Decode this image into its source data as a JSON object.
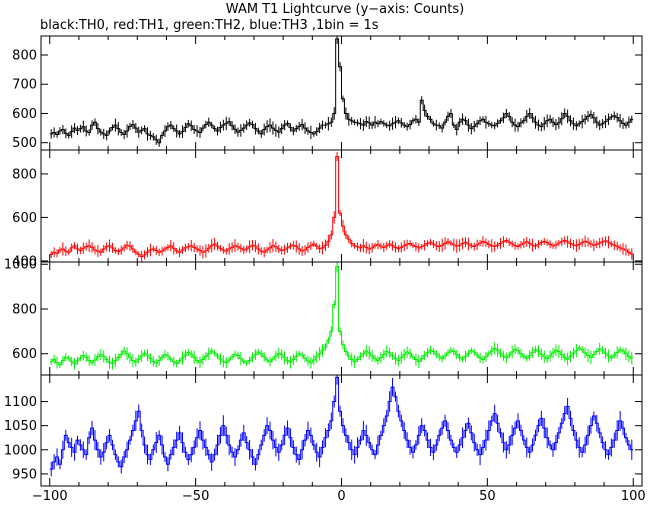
{
  "title": "WAM T1 Lightcurve (y−axis: Counts)",
  "subtitle": "black:TH0, red:TH1, green:TH2, blue:TH3 ,1bin = 1s",
  "chart_data": {
    "type": "line",
    "xlim": [
      -103,
      103
    ],
    "x_ticks": [
      -100,
      -50,
      0,
      50,
      100
    ],
    "x_tick_labels": [
      "−100",
      "−50",
      "0",
      "50",
      "100"
    ],
    "bin_seconds": 1,
    "panels": [
      {
        "name": "TH0",
        "color": "#000000",
        "ylim": [
          475,
          865
        ],
        "y_ticks": [
          500,
          600,
          700,
          800
        ],
        "y_tick_labels": [
          "500",
          "600",
          "700",
          "800"
        ],
        "values": [
          530,
          535,
          528,
          540,
          545,
          532,
          525,
          538,
          550,
          542,
          548,
          555,
          540,
          535,
          560,
          570,
          548,
          536,
          530,
          525,
          540,
          552,
          560,
          548,
          535,
          528,
          540,
          556,
          562,
          550,
          536,
          542,
          548,
          530,
          525,
          520,
          510,
          500,
          525,
          540,
          555,
          560,
          548,
          540,
          530,
          538,
          552,
          565,
          558,
          545,
          540,
          535,
          550,
          562,
          570,
          560,
          548,
          540,
          552,
          560,
          566,
          572,
          558,
          546,
          536,
          542,
          550,
          560,
          568,
          562,
          548,
          540,
          530,
          545,
          555,
          560,
          550,
          542,
          536,
          548,
          560,
          566,
          552,
          540,
          548,
          556,
          562,
          550,
          540,
          535,
          530,
          538,
          550,
          560,
          560,
          565,
          570,
          600,
          855,
          760,
          650,
          600,
          580,
          575,
          570,
          568,
          565,
          560,
          572,
          568,
          560,
          570,
          565,
          572,
          566,
          560,
          558,
          565,
          570,
          575,
          568,
          560,
          555,
          562,
          575,
          580,
          570,
          645,
          610,
          590,
          580,
          565,
          560,
          558,
          550,
          570,
          590,
          600,
          560,
          545,
          570,
          580,
          575,
          560,
          548,
          556,
          565,
          575,
          580,
          570,
          565,
          560,
          558,
          566,
          575,
          585,
          600,
          590,
          570,
          560,
          555,
          568,
          575,
          590,
          600,
          585,
          570,
          560,
          555,
          565,
          575,
          580,
          570,
          562,
          568,
          582,
          600,
          590,
          575,
          565,
          558,
          565,
          572,
          580,
          590,
          596,
          585,
          570,
          560,
          565,
          572,
          580,
          588,
          592,
          586,
          575,
          566,
          560,
          570,
          580
        ]
      },
      {
        "name": "TH1",
        "color": "#ff0000",
        "ylim": [
          395,
          910
        ],
        "y_ticks": [
          400,
          600,
          800
        ],
        "y_tick_labels": [
          "400",
          "600",
          "800"
        ],
        "values": [
          430,
          440,
          435,
          450,
          455,
          445,
          440,
          460,
          470,
          455,
          448,
          458,
          465,
          470,
          462,
          450,
          445,
          440,
          455,
          465,
          470,
          460,
          448,
          442,
          450,
          460,
          472,
          468,
          455,
          440,
          430,
          420,
          428,
          440,
          450,
          455,
          448,
          440,
          445,
          455,
          462,
          470,
          458,
          446,
          440,
          450,
          460,
          465,
          470,
          462,
          455,
          448,
          440,
          446,
          458,
          470,
          478,
          468,
          458,
          450,
          445,
          455,
          462,
          470,
          465,
          458,
          450,
          455,
          465,
          472,
          468,
          455,
          445,
          440,
          450,
          460,
          470,
          465,
          455,
          448,
          452,
          460,
          468,
          472,
          466,
          455,
          446,
          450,
          462,
          470,
          478,
          468,
          456,
          460,
          472,
          490,
          520,
          600,
          880,
          620,
          560,
          520,
          500,
          480,
          470,
          465,
          460,
          470,
          462,
          455,
          460,
          470,
          475,
          468,
          462,
          470,
          478,
          470,
          462,
          456,
          462,
          470,
          476,
          480,
          472,
          466,
          460,
          465,
          472,
          480,
          486,
          478,
          470,
          466,
          472,
          480,
          488,
          482,
          474,
          468,
          472,
          480,
          486,
          478,
          470,
          466,
          474,
          482,
          490,
          484,
          476,
          470,
          466,
          472,
          480,
          488,
          494,
          486,
          478,
          470,
          466,
          474,
          482,
          488,
          480,
          472,
          468,
          476,
          484,
          490,
          484,
          476,
          470,
          474,
          482,
          488,
          494,
          488,
          480,
          474,
          470,
          476,
          484,
          490,
          486,
          478,
          472,
          476,
          482,
          488,
          492,
          486,
          478,
          472,
          468,
          460,
          455,
          450,
          440,
          432
        ]
      },
      {
        "name": "TH2",
        "color": "#00ee00",
        "ylim": [
          505,
          1010
        ],
        "y_ticks": [
          600,
          800,
          1000
        ],
        "y_tick_labels": [
          "600",
          "800",
          "1000"
        ],
        "values": [
          565,
          575,
          560,
          550,
          570,
          585,
          580,
          565,
          555,
          568,
          580,
          592,
          585,
          570,
          560,
          572,
          586,
          596,
          588,
          574,
          562,
          556,
          570,
          584,
          598,
          612,
          600,
          584,
          570,
          562,
          576,
          590,
          602,
          594,
          580,
          566,
          558,
          570,
          584,
          596,
          590,
          576,
          564,
          556,
          568,
          582,
          594,
          606,
          598,
          584,
          570,
          562,
          574,
          588,
          600,
          612,
          604,
          590,
          576,
          566,
          560,
          572,
          586,
          598,
          592,
          578,
          566,
          558,
          570,
          584,
          596,
          608,
          600,
          586,
          572,
          564,
          576,
          590,
          602,
          596,
          582,
          570,
          562,
          574,
          588,
          600,
          594,
          580,
          568,
          560,
          572,
          586,
          600,
          615,
          630,
          660,
          700,
          820,
          990,
          700,
          640,
          610,
          590,
          575,
          565,
          575,
          588,
          600,
          612,
          604,
          590,
          578,
          570,
          582,
          596,
          610,
          604,
          590,
          578,
          570,
          582,
          596,
          608,
          600,
          586,
          574,
          566,
          578,
          592,
          604,
          616,
          610,
          598,
          586,
          578,
          590,
          604,
          616,
          610,
          596,
          584,
          576,
          588,
          602,
          614,
          608,
          594,
          582,
          574,
          586,
          600,
          612,
          624,
          616,
          602,
          590,
          582,
          594,
          608,
          620,
          614,
          600,
          588,
          580,
          592,
          606,
          618,
          612,
          598,
          586,
          578,
          590,
          604,
          616,
          610,
          596,
          584,
          576,
          588,
          602,
          614,
          626,
          618,
          604,
          592,
          584,
          596,
          610,
          622,
          616,
          602,
          590,
          582,
          594,
          606,
          618,
          612,
          600,
          588,
          580
        ]
      },
      {
        "name": "TH3",
        "color": "#0000ff",
        "ylim": [
          925,
          1155
        ],
        "y_ticks": [
          950,
          1000,
          1050,
          1100
        ],
        "y_tick_labels": [
          "950",
          "1000",
          "1050",
          "1100"
        ],
        "values": [
          960,
          975,
          985,
          970,
          1000,
          1030,
          1015,
          1005,
          995,
          1020,
          1010,
          1000,
          990,
          1025,
          1045,
          1020,
          1000,
          985,
          995,
          1015,
          1030,
          1010,
          990,
          975,
          965,
          985,
          1000,
          1020,
          1040,
          1060,
          1080,
          1040,
          1010,
          990,
          980,
          1000,
          1015,
          1030,
          1010,
          985,
          970,
          990,
          1005,
          1020,
          1035,
          1015,
          995,
          980,
          990,
          1005,
          1025,
          1040,
          1020,
          1005,
          990,
          975,
          990,
          1010,
          1030,
          1050,
          1030,
          1010,
          995,
          985,
          1000,
          1020,
          1035,
          1015,
          1000,
          985,
          970,
          990,
          1010,
          1030,
          1050,
          1040,
          1020,
          1005,
          995,
          1010,
          1030,
          1045,
          1025,
          1005,
          990,
          980,
          1000,
          1020,
          1040,
          1030,
          1010,
          995,
          985,
          1005,
          1025,
          1040,
          1060,
          1100,
          1150,
          1080,
          1050,
          1030,
          1015,
          1000,
          990,
          1005,
          1020,
          1040,
          1030,
          1015,
          1000,
          990,
          1010,
          1030,
          1050,
          1070,
          1100,
          1130,
          1110,
          1080,
          1060,
          1040,
          1020,
          1005,
          995,
          1010,
          1030,
          1050,
          1040,
          1020,
          1005,
          995,
          1010,
          1030,
          1045,
          1060,
          1040,
          1020,
          1005,
          995,
          1010,
          1025,
          1040,
          1055,
          1035,
          1015,
          1000,
          990,
          1005,
          1020,
          1040,
          1060,
          1075,
          1055,
          1035,
          1015,
          1000,
          1010,
          1030,
          1045,
          1060,
          1040,
          1020,
          1005,
          995,
          1010,
          1030,
          1050,
          1065,
          1045,
          1025,
          1010,
          1000,
          1015,
          1035,
          1055,
          1075,
          1090,
          1065,
          1040,
          1020,
          1005,
          995,
          1010,
          1030,
          1050,
          1070,
          1055,
          1035,
          1015,
          1000,
          990,
          1005,
          1020,
          1040,
          1060,
          1045,
          1025,
          1010,
          1000
        ]
      }
    ]
  }
}
